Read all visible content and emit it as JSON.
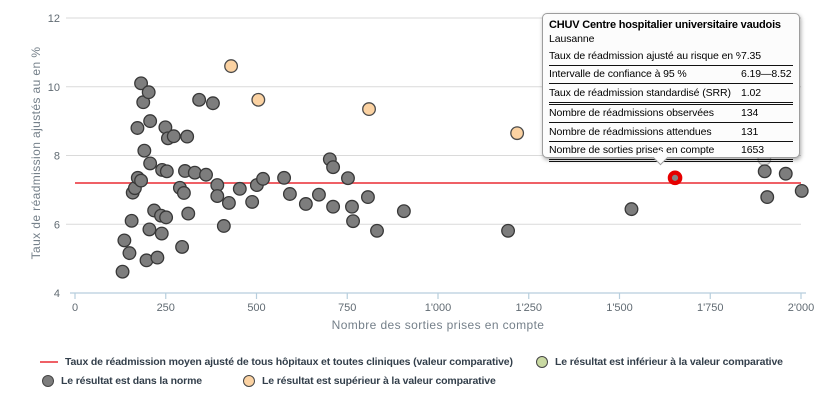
{
  "chart_data": {
    "type": "scatter",
    "title": "",
    "xlabel": "Nombre des sorties prises en compte",
    "ylabel": "Taux de réadmission ajustés au en %",
    "xlim": [
      0,
      2000
    ],
    "ylim": [
      4,
      12
    ],
    "grid": "horizontal",
    "x_ticks": [
      {
        "value": 0,
        "label": "0"
      },
      {
        "value": 250,
        "label": "250"
      },
      {
        "value": 500,
        "label": "500"
      },
      {
        "value": 750,
        "label": "750"
      },
      {
        "value": 1000,
        "label": "1'000"
      },
      {
        "value": 1250,
        "label": "1'250"
      },
      {
        "value": 1500,
        "label": "1'500"
      },
      {
        "value": 1750,
        "label": "1'750"
      },
      {
        "value": 2000,
        "label": "2'000"
      }
    ],
    "y_ticks": [
      {
        "value": 4,
        "label": "4"
      },
      {
        "value": 6,
        "label": "6"
      },
      {
        "value": 8,
        "label": "8"
      },
      {
        "value": 10,
        "label": "10"
      },
      {
        "value": 12,
        "label": "12"
      }
    ],
    "reference_line": {
      "value": 7.2,
      "color": "#ef6066",
      "label": "Taux de réadmission moyen ajusté de tous hôpitaux et toutes cliniques (valeur comparative)"
    },
    "series": [
      {
        "name": "Le résultat est dans la norme",
        "key": "norm",
        "fill": "#7d7d7d",
        "stroke": "#383838",
        "points": [
          [
            131,
            4.62
          ],
          [
            136,
            5.53
          ],
          [
            150,
            5.16
          ],
          [
            156,
            6.1
          ],
          [
            159,
            6.92
          ],
          [
            165,
            7.05
          ],
          [
            172,
            8.8
          ],
          [
            173,
            7.35
          ],
          [
            182,
            10.1
          ],
          [
            182,
            7.27
          ],
          [
            188,
            9.55
          ],
          [
            191,
            8.14
          ],
          [
            197,
            4.95
          ],
          [
            203,
            9.84
          ],
          [
            205,
            5.85
          ],
          [
            207,
            9.0
          ],
          [
            207,
            7.77
          ],
          [
            218,
            6.4
          ],
          [
            227,
            5.03
          ],
          [
            237,
            6.25
          ],
          [
            239,
            5.73
          ],
          [
            240,
            7.58
          ],
          [
            249,
            8.82
          ],
          [
            251,
            6.2
          ],
          [
            253,
            7.54
          ],
          [
            256,
            8.5
          ],
          [
            272,
            8.56
          ],
          [
            289,
            7.06
          ],
          [
            295,
            5.34
          ],
          [
            300,
            6.91
          ],
          [
            303,
            7.55
          ],
          [
            309,
            8.55
          ],
          [
            312,
            6.31
          ],
          [
            330,
            7.5
          ],
          [
            342,
            9.62
          ],
          [
            361,
            7.44
          ],
          [
            380,
            9.52
          ],
          [
            392,
            7.14
          ],
          [
            392,
            6.82
          ],
          [
            410,
            5.95
          ],
          [
            424,
            6.62
          ],
          [
            454,
            7.03
          ],
          [
            488,
            6.65
          ],
          [
            501,
            7.14
          ],
          [
            518,
            7.32
          ],
          [
            576,
            7.35
          ],
          [
            592,
            6.88
          ],
          [
            636,
            6.59
          ],
          [
            672,
            6.86
          ],
          [
            702,
            7.89
          ],
          [
            711,
            7.66
          ],
          [
            711,
            6.51
          ],
          [
            752,
            7.34
          ],
          [
            763,
            6.51
          ],
          [
            766,
            6.09
          ],
          [
            807,
            6.79
          ],
          [
            832,
            5.81
          ],
          [
            906,
            6.38
          ],
          [
            1193,
            5.81
          ],
          [
            1533,
            6.44
          ],
          [
            1900,
            7.54
          ],
          [
            1907,
            6.79
          ],
          [
            1958,
            7.47
          ],
          [
            2002,
            6.97
          ]
        ]
      },
      {
        "name": "Le résultat est supérieur à la valeur comparative",
        "key": "superior",
        "fill": "#fbd2a2",
        "stroke": "#4a4a4a",
        "points": [
          [
            430,
            10.6
          ],
          [
            505,
            9.62
          ],
          [
            810,
            9.35
          ],
          [
            1218,
            8.65
          ]
        ]
      },
      {
        "name": "Le résultat est inférieur à la valeur comparative",
        "key": "inferior",
        "fill": "#c9d9a2",
        "stroke": "#4a4a4a",
        "points": []
      }
    ],
    "selected_point": {
      "x": 1653,
      "y": 7.35,
      "fill": "#868686",
      "ring_color": "#e60000"
    },
    "occluded_point": {
      "x": 1899,
      "y": 7.9,
      "fill": "#e4e4e4",
      "stroke": "#b2b2b2"
    }
  },
  "tooltip": {
    "title": "CHUV Centre hospitalier universitaire vaudois",
    "subtitle": "Lausanne",
    "rows": [
      {
        "label": "Taux de réadmission ajusté au risque en %",
        "value": "7.35",
        "divider": "normal"
      },
      {
        "label": "Intervalle de confiance à 95 %",
        "value": "6.19—8.52",
        "divider": "normal"
      },
      {
        "label": "Taux de réadmission standardisé (SRR)",
        "value": "1.02",
        "divider": "thick"
      },
      {
        "label": "Nombre de réadmissions observées",
        "value": "134",
        "divider": "normal"
      },
      {
        "label": "Nombre de réadmissions attendues",
        "value": "131",
        "divider": "normal"
      },
      {
        "label": "Nombre de sorties prises en compte",
        "value": "1653",
        "divider": "thick"
      }
    ]
  },
  "legend": {
    "comparative_line": "Taux de réadmission moyen ajusté de tous hôpitaux et toutes cliniques (valeur comparative)",
    "norm": "Le résultat est dans la norme",
    "superior": "Le résultat est supérieur à la valeur comparative",
    "inferior": "Le résultat est inférieur à la valeur comparative"
  },
  "colors": {
    "reference_line": "#ef6066",
    "norm_fill": "#7d7d7d",
    "superior_fill": "#fbd2a2",
    "inferior_fill": "#c9d9a2",
    "selection_ring": "#e60000",
    "gridline": "#dadada",
    "axis_line": "#b7cedd",
    "tick_text": "#616b73"
  }
}
